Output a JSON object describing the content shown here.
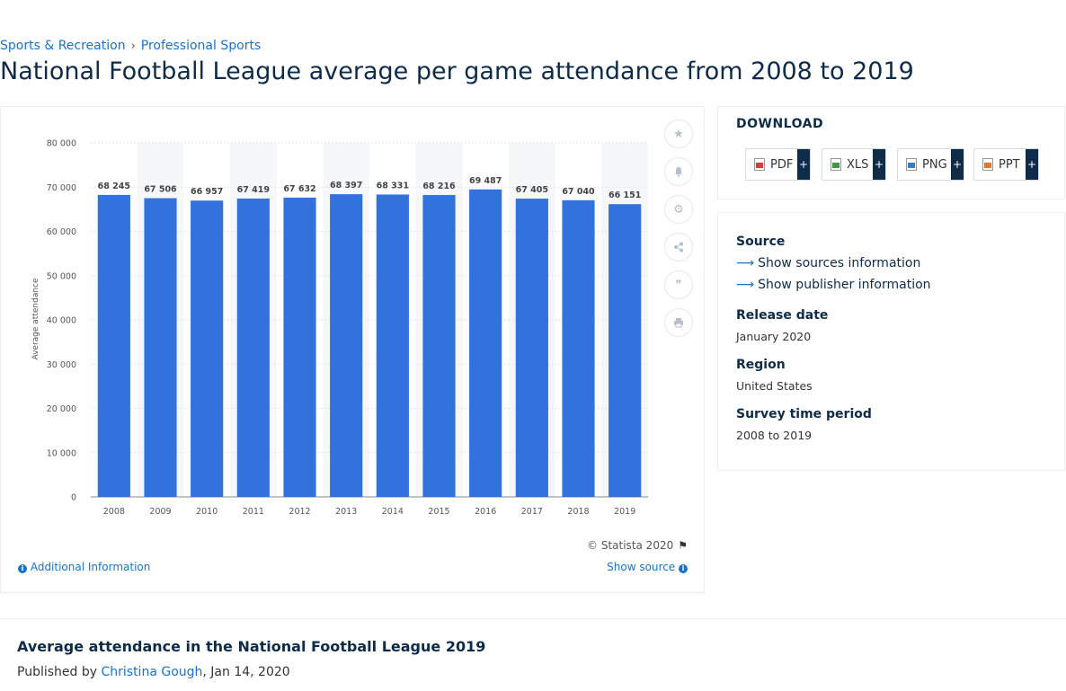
{
  "breadcrumb": {
    "item1": "Sports & Recreation",
    "item2": "Professional Sports"
  },
  "page_title": "National Football League average per game attendance from 2008 to 2019",
  "chart_data": {
    "type": "bar",
    "categories": [
      "2008",
      "2009",
      "2010",
      "2011",
      "2012",
      "2013",
      "2014",
      "2015",
      "2016",
      "2017",
      "2018",
      "2019"
    ],
    "values": [
      68245,
      67506,
      66957,
      67419,
      67632,
      68397,
      68331,
      68216,
      69487,
      67405,
      67040,
      66151
    ],
    "data_labels": [
      "68 245",
      "67 506",
      "66 957",
      "67 419",
      "67 632",
      "68 397",
      "68 331",
      "68 216",
      "69 487",
      "67 405",
      "67 040",
      "66 151"
    ],
    "ylabel": "Average attendance",
    "ylim": [
      0,
      80000
    ],
    "y_ticks": [
      0,
      10000,
      20000,
      30000,
      40000,
      50000,
      60000,
      70000,
      80000
    ],
    "y_tick_labels": [
      "0",
      "10 000",
      "20 000",
      "30 000",
      "40 000",
      "50 000",
      "60 000",
      "70 000",
      "80 000"
    ],
    "bar_color": "#3172dc",
    "grid": true
  },
  "chart_footer": {
    "credit": "© Statista 2020",
    "additional_info": "Additional Information",
    "show_source": "Show source"
  },
  "download": {
    "title": "DOWNLOAD",
    "buttons": [
      {
        "label": "PDF",
        "icon": "pdf-file-icon"
      },
      {
        "label": "XLS",
        "icon": "xls-file-icon"
      },
      {
        "label": "PNG",
        "icon": "png-file-icon"
      },
      {
        "label": "PPT",
        "icon": "ppt-file-icon"
      }
    ],
    "plus": "+"
  },
  "info": {
    "source_heading": "Source",
    "show_sources": "Show sources information",
    "show_publisher": "Show publisher information",
    "release_heading": "Release date",
    "release_value": "January 2020",
    "region_heading": "Region",
    "region_value": "United States",
    "survey_heading": "Survey time period",
    "survey_value": "2008 to 2019"
  },
  "bottom": {
    "title": "Average attendance in the National Football League 2019",
    "published_prefix": "Published by",
    "author": "Christina Gough",
    "date": ", Jan 14, 2020"
  }
}
